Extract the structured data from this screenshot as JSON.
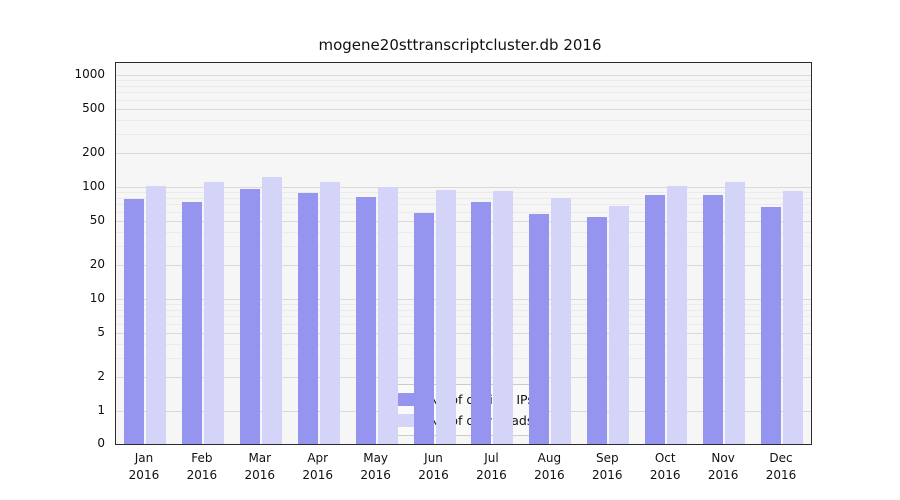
{
  "chart_data": {
    "type": "bar",
    "title": "mogene20sttranscriptcluster.db 2016",
    "year_label": "2016",
    "categories": [
      "Jan",
      "Feb",
      "Mar",
      "Apr",
      "May",
      "Jun",
      "Jul",
      "Aug",
      "Sep",
      "Oct",
      "Nov",
      "Dec"
    ],
    "series": [
      {
        "name": "Nb of distinct IPs",
        "color": "#9595ef",
        "values": [
          78,
          73,
          96,
          88,
          82,
          59,
          73,
          58,
          54,
          85,
          85,
          66
        ]
      },
      {
        "name": "Nb of downloads",
        "color": "#d4d4f9",
        "values": [
          102,
          110,
          122,
          112,
          100,
          94,
          93,
          80,
          68,
          103,
          110,
          92
        ]
      }
    ],
    "yticks": [
      0,
      1,
      2,
      5,
      10,
      20,
      50,
      100,
      200,
      500,
      1000
    ],
    "minor_yticks": [
      3,
      4,
      6,
      7,
      8,
      9,
      30,
      40,
      60,
      70,
      80,
      90,
      300,
      400,
      600,
      700,
      800,
      900
    ],
    "scale": "log",
    "ylim": [
      0,
      1400
    ],
    "xlabel": "",
    "ylabel": "",
    "grid": true,
    "legend_position": "lower center"
  }
}
